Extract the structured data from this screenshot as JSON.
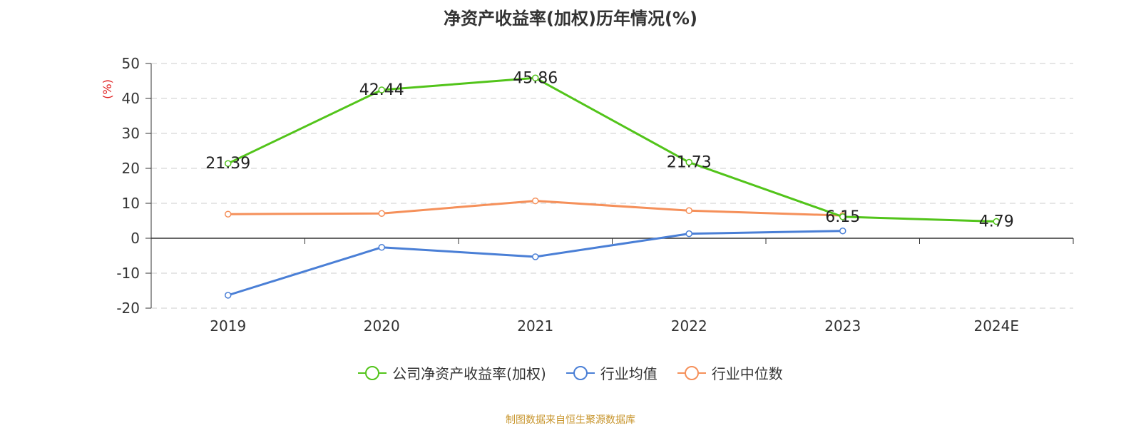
{
  "title": "净资产收益率(加权)历年情况(%)",
  "source": "制图数据来自恒生聚源数据库",
  "colors": {
    "company": "#52c41a",
    "industry_avg": "#4a7fd6",
    "industry_median": "#f5905a",
    "source": "#c8962e",
    "unit": "#e02020"
  },
  "chart_data": {
    "type": "line",
    "title": "净资产收益率(加权)历年情况(%)",
    "ylabel": "(%)",
    "xlabel": "",
    "categories": [
      "2019",
      "2020",
      "2021",
      "2022",
      "2023",
      "2024E"
    ],
    "ylim": [
      -20,
      50
    ],
    "yticks": [
      50,
      40,
      30,
      20,
      10,
      0,
      -10,
      -20
    ],
    "grid": true,
    "legend_position": "bottom",
    "series": [
      {
        "name": "公司净资产收益率(加权)",
        "values": [
          21.39,
          42.44,
          45.86,
          21.73,
          6.15,
          4.79
        ],
        "labels": [
          "21.39",
          "42.44",
          "45.86",
          "21.73",
          "6.15",
          "4.79"
        ]
      },
      {
        "name": "行业均值",
        "values": [
          -16.3,
          -2.6,
          -5.3,
          1.3,
          2.1,
          null
        ]
      },
      {
        "name": "行业中位数",
        "values": [
          6.9,
          7.1,
          10.7,
          7.9,
          6.5,
          null
        ]
      }
    ]
  }
}
